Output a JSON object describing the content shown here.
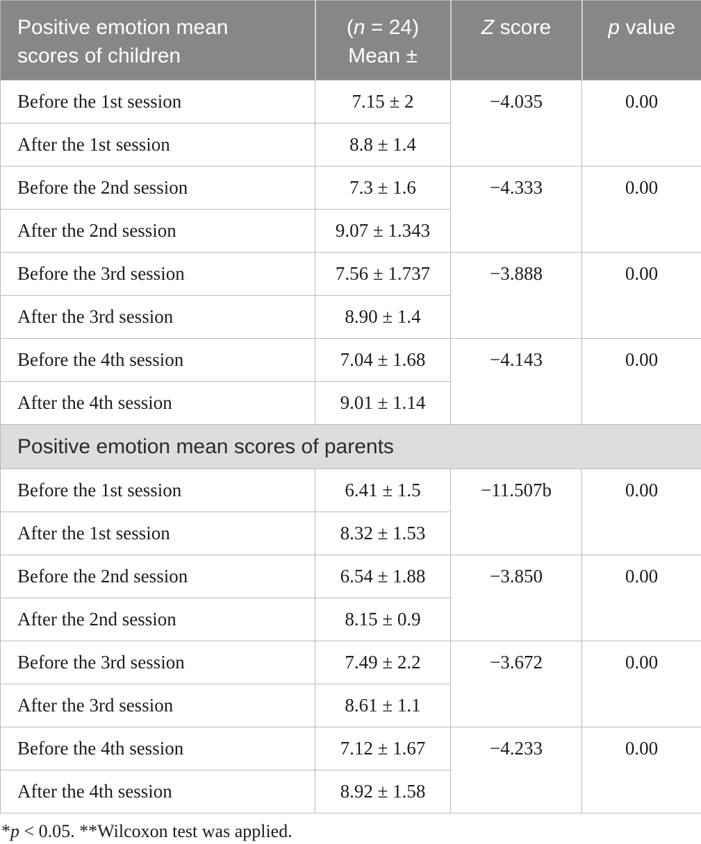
{
  "colors": {
    "header_background": "#878787",
    "header_text": "#ffffff",
    "section_background": "#dedddd",
    "body_text": "#1c1c1c",
    "border": "#b9b9b9"
  },
  "table": {
    "header": {
      "children_title": "Positive emotion mean scores of children",
      "mean_pre": "(",
      "mean_n": "n",
      "mean_post": " = 24)",
      "mean_line2": "Mean ±",
      "z_italic": "Z",
      "z_rest": " score",
      "p_italic": "p",
      "p_rest": " value"
    },
    "children": {
      "pairs": [
        {
          "before": {
            "label": "Before the 1st session",
            "mean": "7.15 ± 2"
          },
          "after": {
            "label": "After the 1st session",
            "mean": "8.8 ± 1.4"
          },
          "z": "−4.035",
          "p": "0.00"
        },
        {
          "before": {
            "label": "Before the 2nd session",
            "mean": "7.3 ± 1.6"
          },
          "after": {
            "label": "After the 2nd session",
            "mean": "9.07 ± 1.343"
          },
          "z": "−4.333",
          "p": "0.00"
        },
        {
          "before": {
            "label": "Before the 3rd session",
            "mean": "7.56 ± 1.737"
          },
          "after": {
            "label": "After the 3rd session",
            "mean": "8.90 ± 1.4"
          },
          "z": "−3.888",
          "p": "0.00"
        },
        {
          "before": {
            "label": "Before the 4th session",
            "mean": "7.04 ± 1.68"
          },
          "after": {
            "label": "After the 4th session",
            "mean": "9.01 ± 1.14"
          },
          "z": "−4.143",
          "p": "0.00"
        }
      ]
    },
    "parents_section_title": "Positive emotion mean scores of parents",
    "parents": {
      "pairs": [
        {
          "before": {
            "label": "Before the 1st session",
            "mean": "6.41 ± 1.5"
          },
          "after": {
            "label": "After the 1st session",
            "mean": "8.32 ± 1.53"
          },
          "z": "−11.507b",
          "p": "0.00"
        },
        {
          "before": {
            "label": "Before the 2nd session",
            "mean": "6.54 ± 1.88"
          },
          "after": {
            "label": "After the 2nd session",
            "mean": "8.15 ± 0.9"
          },
          "z": "−3.850",
          "p": "0.00"
        },
        {
          "before": {
            "label": "Before the 3rd session",
            "mean": "7.49 ± 2.2"
          },
          "after": {
            "label": "After the 3rd session",
            "mean": "8.61 ± 1.1"
          },
          "z": "−3.672",
          "p": "0.00"
        },
        {
          "before": {
            "label": "Before the 4th session",
            "mean": "7.12 ± 1.67"
          },
          "after": {
            "label": "After the 4th session",
            "mean": "8.92 ± 1.58"
          },
          "z": "−4.233",
          "p": "0.00"
        }
      ]
    },
    "footnote": {
      "pre": "*",
      "p_italic": "p",
      "rest": " < 0.05. **Wilcoxon test was applied."
    }
  }
}
